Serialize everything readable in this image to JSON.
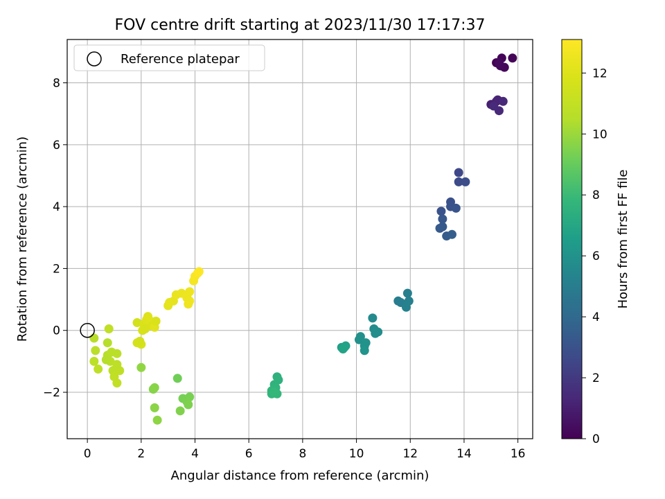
{
  "chart_data": {
    "type": "scatter",
    "title": "FOV centre drift starting at 2023/11/30 17:17:37",
    "xlabel": "Angular distance from reference (arcmin)",
    "ylabel": "Rotation from reference (arcmin)",
    "xlim": [
      -0.75,
      16.55
    ],
    "ylim": [
      -3.5,
      9.4
    ],
    "x_ticks": [
      0,
      2,
      4,
      6,
      8,
      10,
      12,
      14,
      16
    ],
    "y_ticks": [
      -2,
      0,
      2,
      4,
      6,
      8
    ],
    "grid": true,
    "legend": {
      "position": "top-left",
      "entries": [
        "Reference platepar"
      ]
    },
    "reference_point": {
      "x": 0,
      "y": 0
    },
    "colorbar": {
      "label": "Hours from first FF file",
      "range": [
        0,
        13.1
      ],
      "ticks": [
        0,
        2,
        4,
        6,
        8,
        10,
        12
      ],
      "colormap": "viridis"
    },
    "points": [
      {
        "x": 15.2,
        "y": 8.65,
        "h": 0.0
      },
      {
        "x": 15.4,
        "y": 8.8,
        "h": 0.1
      },
      {
        "x": 15.8,
        "y": 8.8,
        "h": 0.15
      },
      {
        "x": 15.5,
        "y": 8.5,
        "h": 0.2
      },
      {
        "x": 15.35,
        "y": 8.55,
        "h": 0.25
      },
      {
        "x": 15.3,
        "y": 8.65,
        "h": 0.3
      },
      {
        "x": 15.0,
        "y": 7.3,
        "h": 1.0
      },
      {
        "x": 15.2,
        "y": 7.4,
        "h": 1.1
      },
      {
        "x": 15.25,
        "y": 7.45,
        "h": 1.2
      },
      {
        "x": 15.45,
        "y": 7.4,
        "h": 1.3
      },
      {
        "x": 15.3,
        "y": 7.1,
        "h": 1.35
      },
      {
        "x": 15.1,
        "y": 7.25,
        "h": 1.4
      },
      {
        "x": 13.8,
        "y": 5.1,
        "h": 2.6
      },
      {
        "x": 13.8,
        "y": 4.8,
        "h": 2.7
      },
      {
        "x": 14.05,
        "y": 4.8,
        "h": 2.8
      },
      {
        "x": 13.5,
        "y": 4.15,
        "h": 2.9
      },
      {
        "x": 13.5,
        "y": 4.0,
        "h": 3.0
      },
      {
        "x": 13.15,
        "y": 3.85,
        "h": 3.05
      },
      {
        "x": 13.7,
        "y": 3.95,
        "h": 3.1
      },
      {
        "x": 13.2,
        "y": 3.6,
        "h": 3.2
      },
      {
        "x": 13.2,
        "y": 3.35,
        "h": 3.3
      },
      {
        "x": 13.1,
        "y": 3.3,
        "h": 3.35
      },
      {
        "x": 13.35,
        "y": 3.05,
        "h": 3.4
      },
      {
        "x": 13.55,
        "y": 3.1,
        "h": 3.5
      },
      {
        "x": 11.55,
        "y": 0.95,
        "h": 5.0
      },
      {
        "x": 11.65,
        "y": 0.9,
        "h": 5.05
      },
      {
        "x": 11.9,
        "y": 1.2,
        "h": 5.1
      },
      {
        "x": 11.95,
        "y": 0.95,
        "h": 5.15
      },
      {
        "x": 11.85,
        "y": 0.75,
        "h": 5.2
      },
      {
        "x": 10.6,
        "y": 0.4,
        "h": 5.6
      },
      {
        "x": 10.65,
        "y": 0.05,
        "h": 5.7
      },
      {
        "x": 10.8,
        "y": -0.05,
        "h": 5.75
      },
      {
        "x": 10.7,
        "y": -0.1,
        "h": 5.8
      },
      {
        "x": 10.15,
        "y": -0.2,
        "h": 5.9
      },
      {
        "x": 10.1,
        "y": -0.3,
        "h": 5.95
      },
      {
        "x": 10.35,
        "y": -0.4,
        "h": 6.0
      },
      {
        "x": 10.3,
        "y": -0.5,
        "h": 6.05
      },
      {
        "x": 10.3,
        "y": -0.65,
        "h": 6.1
      },
      {
        "x": 9.45,
        "y": -0.55,
        "h": 6.6
      },
      {
        "x": 9.55,
        "y": -0.55,
        "h": 6.7
      },
      {
        "x": 9.6,
        "y": -0.5,
        "h": 6.75
      },
      {
        "x": 9.5,
        "y": -0.6,
        "h": 6.8
      },
      {
        "x": 7.05,
        "y": -1.5,
        "h": 7.5
      },
      {
        "x": 7.1,
        "y": -1.6,
        "h": 7.55
      },
      {
        "x": 6.95,
        "y": -1.75,
        "h": 7.6
      },
      {
        "x": 7.0,
        "y": -1.85,
        "h": 7.65
      },
      {
        "x": 6.85,
        "y": -1.95,
        "h": 7.7
      },
      {
        "x": 6.85,
        "y": -2.05,
        "h": 7.75
      },
      {
        "x": 7.05,
        "y": -2.05,
        "h": 7.8
      },
      {
        "x": 6.95,
        "y": -2.0,
        "h": 7.85
      },
      {
        "x": 3.35,
        "y": -1.55,
        "h": 9.2
      },
      {
        "x": 3.55,
        "y": -2.2,
        "h": 9.3
      },
      {
        "x": 3.8,
        "y": -2.15,
        "h": 9.35
      },
      {
        "x": 3.7,
        "y": -2.3,
        "h": 9.4
      },
      {
        "x": 3.75,
        "y": -2.4,
        "h": 9.45
      },
      {
        "x": 3.45,
        "y": -2.6,
        "h": 9.5
      },
      {
        "x": 2.45,
        "y": -1.9,
        "h": 9.6
      },
      {
        "x": 2.5,
        "y": -1.85,
        "h": 9.65
      },
      {
        "x": 2.5,
        "y": -2.5,
        "h": 9.7
      },
      {
        "x": 2.6,
        "y": -2.9,
        "h": 9.75
      },
      {
        "x": 2.0,
        "y": -1.2,
        "h": 9.8
      },
      {
        "x": 0.25,
        "y": -0.25,
        "h": 10.6
      },
      {
        "x": 0.3,
        "y": -0.65,
        "h": 10.7
      },
      {
        "x": 0.25,
        "y": -1.0,
        "h": 10.75
      },
      {
        "x": 0.4,
        "y": -1.25,
        "h": 10.8
      },
      {
        "x": 0.75,
        "y": -0.4,
        "h": 10.5
      },
      {
        "x": 0.8,
        "y": 0.05,
        "h": 10.9
      },
      {
        "x": 0.75,
        "y": -0.8,
        "h": 10.6
      },
      {
        "x": 0.9,
        "y": -0.7,
        "h": 10.65
      },
      {
        "x": 1.1,
        "y": -0.75,
        "h": 10.7
      },
      {
        "x": 0.85,
        "y": -1.0,
        "h": 10.7
      },
      {
        "x": 0.95,
        "y": -1.3,
        "h": 10.75
      },
      {
        "x": 1.05,
        "y": -1.25,
        "h": 10.8
      },
      {
        "x": 1.2,
        "y": -1.3,
        "h": 10.85
      },
      {
        "x": 1.1,
        "y": -1.1,
        "h": 10.8
      },
      {
        "x": 1.0,
        "y": -1.5,
        "h": 10.9
      },
      {
        "x": 1.1,
        "y": -1.7,
        "h": 10.95
      },
      {
        "x": 0.7,
        "y": -0.95,
        "h": 10.55
      },
      {
        "x": 1.85,
        "y": 0.25,
        "h": 11.6
      },
      {
        "x": 1.85,
        "y": -0.4,
        "h": 11.65
      },
      {
        "x": 2.0,
        "y": -0.45,
        "h": 11.7
      },
      {
        "x": 1.95,
        "y": -0.35,
        "h": 11.6
      },
      {
        "x": 2.05,
        "y": 0.0,
        "h": 11.8
      },
      {
        "x": 2.1,
        "y": 0.2,
        "h": 11.9
      },
      {
        "x": 2.2,
        "y": 0.35,
        "h": 11.95
      },
      {
        "x": 2.25,
        "y": 0.45,
        "h": 12.0
      },
      {
        "x": 2.35,
        "y": 0.3,
        "h": 12.05
      },
      {
        "x": 2.4,
        "y": 0.15,
        "h": 11.9
      },
      {
        "x": 2.5,
        "y": 0.1,
        "h": 12.1
      },
      {
        "x": 2.55,
        "y": 0.3,
        "h": 11.85
      },
      {
        "x": 2.15,
        "y": 0.05,
        "h": 11.75
      },
      {
        "x": 3.0,
        "y": 0.8,
        "h": 12.2
      },
      {
        "x": 3.05,
        "y": 0.9,
        "h": 12.25
      },
      {
        "x": 3.2,
        "y": 0.95,
        "h": 12.3
      },
      {
        "x": 3.3,
        "y": 1.15,
        "h": 12.4
      },
      {
        "x": 3.5,
        "y": 1.2,
        "h": 12.45
      },
      {
        "x": 3.7,
        "y": 1.05,
        "h": 12.5
      },
      {
        "x": 3.8,
        "y": 1.25,
        "h": 12.55
      },
      {
        "x": 3.75,
        "y": 0.85,
        "h": 12.6
      },
      {
        "x": 3.8,
        "y": 0.95,
        "h": 12.65
      },
      {
        "x": 3.7,
        "y": 1.1,
        "h": 12.5
      },
      {
        "x": 3.95,
        "y": 1.6,
        "h": 12.8
      },
      {
        "x": 4.0,
        "y": 1.75,
        "h": 12.9
      },
      {
        "x": 4.1,
        "y": 1.85,
        "h": 13.0
      },
      {
        "x": 4.15,
        "y": 1.9,
        "h": 13.05
      }
    ]
  }
}
